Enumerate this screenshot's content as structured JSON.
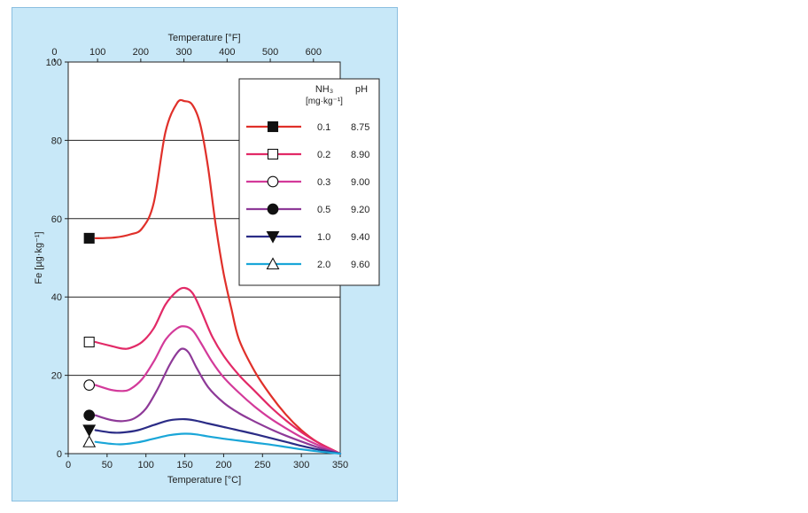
{
  "chart_data": {
    "type": "line",
    "title": "",
    "xlabel": "Temperature [°C]",
    "x2label": "Temperature [°F]",
    "ylabel": "Fe [µg·kg⁻¹]",
    "xlim": [
      0,
      350
    ],
    "ylim": [
      0,
      100
    ],
    "x2lim": [
      32,
      662
    ],
    "xticks": [
      0,
      50,
      100,
      150,
      200,
      250,
      300,
      350
    ],
    "x2ticks": [
      0,
      100,
      200,
      300,
      400,
      500,
      600
    ],
    "yticks": [
      0,
      20,
      40,
      60,
      80,
      100
    ],
    "grid": "horizontal",
    "legend": {
      "placement": "top-right",
      "header_nh3": "NH₃",
      "header_unit": "[mg·kg⁻¹]",
      "header_ph": "pH"
    },
    "series": [
      {
        "nh3": "0.1",
        "ph": "8.75",
        "color": "#e0302a",
        "marker": "filled-square",
        "x": [
          35,
          60,
          80,
          95,
          110,
          125,
          140,
          150,
          160,
          170,
          180,
          190,
          200,
          210,
          220,
          240,
          260,
          280,
          300,
          320,
          350
        ],
        "y": [
          55,
          55.2,
          56,
          57.5,
          64,
          82,
          89.5,
          90,
          89,
          84,
          73,
          58,
          46,
          37,
          29,
          21,
          15,
          10,
          6,
          3,
          0
        ]
      },
      {
        "nh3": "0.2",
        "ph": "8.90",
        "color": "#e22a67",
        "marker": "open-square",
        "x": [
          35,
          55,
          70,
          80,
          95,
          110,
          125,
          140,
          150,
          160,
          170,
          185,
          200,
          220,
          240,
          260,
          280,
          300,
          320,
          350
        ],
        "y": [
          28.5,
          27.5,
          26.8,
          27,
          28.5,
          32,
          38,
          41.5,
          42.3,
          41,
          37,
          30,
          25,
          20,
          16,
          12,
          8.5,
          5.5,
          3,
          0
        ]
      },
      {
        "nh3": "0.3",
        "ph": "9.00",
        "color": "#d33a9a",
        "marker": "open-circle",
        "x": [
          35,
          55,
          70,
          80,
          95,
          110,
          125,
          140,
          150,
          160,
          170,
          185,
          200,
          220,
          240,
          260,
          280,
          300,
          320,
          350
        ],
        "y": [
          17.5,
          16.3,
          16,
          16.5,
          19,
          23.5,
          29,
          32,
          32.5,
          31.5,
          28.5,
          23.5,
          19.5,
          15.5,
          12,
          9,
          6.5,
          4.2,
          2.3,
          0
        ]
      },
      {
        "nh3": "0.5",
        "ph": "9.20",
        "color": "#8e3a98",
        "marker": "filled-circle",
        "x": [
          35,
          55,
          70,
          85,
          100,
          115,
          130,
          140,
          147,
          155,
          165,
          180,
          200,
          220,
          240,
          260,
          280,
          300,
          320,
          350
        ],
        "y": [
          9.8,
          8.6,
          8.3,
          9,
          11.5,
          16.5,
          22.5,
          25.7,
          26.8,
          25.8,
          22,
          17,
          13,
          10.3,
          8.2,
          6.3,
          4.6,
          3.1,
          1.7,
          0
        ]
      },
      {
        "nh3": "1.0",
        "ph": "9.40",
        "color": "#2b2c86",
        "marker": "filled-triangle-down",
        "x": [
          35,
          55,
          70,
          90,
          110,
          130,
          150,
          165,
          180,
          200,
          220,
          240,
          260,
          280,
          300,
          320,
          350
        ],
        "y": [
          6,
          5.4,
          5.4,
          6,
          7.3,
          8.5,
          8.8,
          8.4,
          7.7,
          6.8,
          5.9,
          5,
          4,
          3,
          2,
          1.1,
          0
        ]
      },
      {
        "nh3": "2.0",
        "ph": "9.60",
        "color": "#1aa6d8",
        "marker": "open-triangle-up",
        "x": [
          35,
          55,
          70,
          90,
          110,
          130,
          150,
          165,
          180,
          200,
          220,
          240,
          260,
          280,
          300,
          320,
          350
        ],
        "y": [
          3,
          2.5,
          2.4,
          2.9,
          3.8,
          4.7,
          5.1,
          4.9,
          4.4,
          3.8,
          3.3,
          2.8,
          2.3,
          1.7,
          1.1,
          0.6,
          0
        ]
      }
    ]
  }
}
